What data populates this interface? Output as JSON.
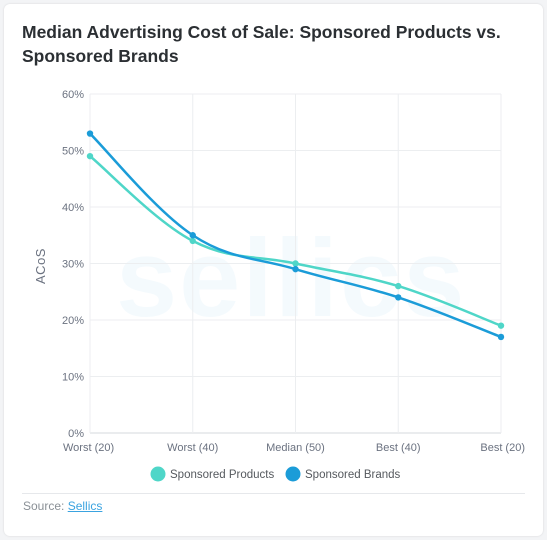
{
  "chart_data": {
    "type": "line",
    "title": "Median Advertising Cost of Sale: Sponsored Products vs. Sponsored Brands",
    "xlabel": "",
    "ylabel": "ACoS",
    "categories": [
      "Worst (20)",
      "Worst (40)",
      "Median (50)",
      "Best (40)",
      "Best (20)"
    ],
    "series": [
      {
        "name": "Sponsored Products",
        "values": [
          49,
          34,
          30,
          26,
          19
        ],
        "color": "#4fd6c8"
      },
      {
        "name": "Sponsored Brands",
        "values": [
          53,
          35,
          29,
          24,
          17
        ],
        "color": "#1b9cd8"
      }
    ],
    "ylim": [
      0,
      60
    ],
    "yticks": [
      0,
      10,
      20,
      30,
      40,
      50,
      60
    ],
    "ytick_suffix": "%",
    "grid": true,
    "legend": "bottom-center",
    "watermark": "sellics"
  },
  "source": {
    "label": "Source:",
    "link_text": "Sellics"
  }
}
